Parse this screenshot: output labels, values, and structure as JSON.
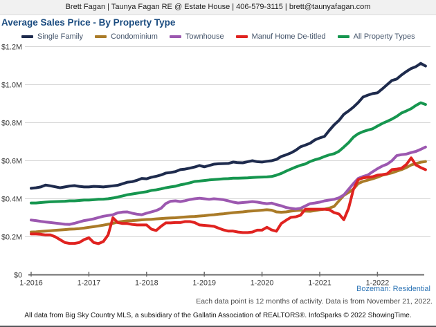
{
  "broker_bar": {
    "text": "Brett Fagan | Taunya Fagan RE @ Estate House | 406-579-3115 | brett@taunyafagan.com"
  },
  "title": "Average Sales Price - By Property Type",
  "footnotes": {
    "market": "Bozeman: Residential",
    "data_note": "Each data point is 12 months of activity. Data is from November 21, 2022.",
    "attribution": "All data from Big Sky Country MLS, a subsidiary of the Gallatin Association of REALTORS®. InfoSparks © 2022 ShowingTime."
  },
  "colors": {
    "title_blue": "#1b4c80",
    "footnote_blue": "#2e75b6",
    "grid": "#d4d4d4",
    "axis": "#6b6b6b",
    "tick_text": "#3a3a3a"
  },
  "chart_data": {
    "type": "line",
    "title": "Average Sales Price - By Property Type",
    "unit": "USD, millions",
    "x_interval": "monthly",
    "x_start": "1-2016",
    "x_end": "11-2022",
    "ylim": [
      0,
      1.2
    ],
    "grid": "horizontal",
    "legend_position": "top",
    "y_ticks": [
      {
        "label": "$0",
        "value": 0.0
      },
      {
        "label": "$0.2M",
        "value": 0.2
      },
      {
        "label": "$0.4M",
        "value": 0.4
      },
      {
        "label": "$0.6M",
        "value": 0.6
      },
      {
        "label": "$0.8M",
        "value": 0.8
      },
      {
        "label": "$1.0M",
        "value": 1.0
      },
      {
        "label": "$1.2M",
        "value": 1.2
      }
    ],
    "x_ticks": [
      {
        "label": "1-2016",
        "month_index": 0
      },
      {
        "label": "1-2017",
        "month_index": 12
      },
      {
        "label": "1-2018",
        "month_index": 24
      },
      {
        "label": "1-2019",
        "month_index": 36
      },
      {
        "label": "1-2020",
        "month_index": 48
      },
      {
        "label": "1-2021",
        "month_index": 60
      },
      {
        "label": "1-2022",
        "month_index": 72
      }
    ],
    "series": [
      {
        "name": "Single Family",
        "color": "#1e2b4d",
        "values": [
          0.455,
          0.458,
          0.462,
          0.472,
          0.468,
          0.463,
          0.458,
          0.462,
          0.467,
          0.469,
          0.465,
          0.462,
          0.462,
          0.465,
          0.464,
          0.462,
          0.465,
          0.468,
          0.471,
          0.479,
          0.487,
          0.49,
          0.497,
          0.507,
          0.505,
          0.513,
          0.518,
          0.525,
          0.535,
          0.538,
          0.543,
          0.553,
          0.556,
          0.561,
          0.567,
          0.575,
          0.568,
          0.575,
          0.582,
          0.584,
          0.585,
          0.586,
          0.593,
          0.59,
          0.589,
          0.595,
          0.6,
          0.595,
          0.593,
          0.597,
          0.6,
          0.607,
          0.622,
          0.631,
          0.641,
          0.655,
          0.673,
          0.682,
          0.692,
          0.71,
          0.72,
          0.728,
          0.76,
          0.789,
          0.812,
          0.844,
          0.862,
          0.882,
          0.906,
          0.935,
          0.945,
          0.953,
          0.957,
          0.978,
          1.0,
          1.022,
          1.03,
          1.051,
          1.069,
          1.085,
          1.095,
          1.112,
          1.098
        ]
      },
      {
        "name": "Condominium",
        "color": "#aa7b28",
        "values": [
          0.225,
          0.226,
          0.228,
          0.23,
          0.232,
          0.234,
          0.236,
          0.238,
          0.24,
          0.241,
          0.243,
          0.246,
          0.25,
          0.253,
          0.257,
          0.261,
          0.266,
          0.271,
          0.277,
          0.281,
          0.284,
          0.285,
          0.287,
          0.289,
          0.291,
          0.292,
          0.294,
          0.296,
          0.298,
          0.299,
          0.3,
          0.302,
          0.304,
          0.306,
          0.307,
          0.309,
          0.311,
          0.314,
          0.316,
          0.319,
          0.321,
          0.324,
          0.327,
          0.329,
          0.331,
          0.334,
          0.336,
          0.338,
          0.34,
          0.342,
          0.34,
          0.331,
          0.329,
          0.331,
          0.335,
          0.338,
          0.34,
          0.335,
          0.334,
          0.338,
          0.342,
          0.345,
          0.351,
          0.36,
          0.389,
          0.418,
          0.433,
          0.451,
          0.48,
          0.491,
          0.498,
          0.505,
          0.513,
          0.524,
          0.53,
          0.536,
          0.545,
          0.553,
          0.564,
          0.578,
          0.585,
          0.592,
          0.596
        ]
      },
      {
        "name": "Townhouse",
        "color": "#9c58b0",
        "values": [
          0.288,
          0.285,
          0.281,
          0.278,
          0.275,
          0.272,
          0.269,
          0.266,
          0.265,
          0.271,
          0.278,
          0.285,
          0.289,
          0.294,
          0.301,
          0.308,
          0.312,
          0.316,
          0.326,
          0.33,
          0.331,
          0.324,
          0.319,
          0.316,
          0.324,
          0.331,
          0.338,
          0.35,
          0.375,
          0.387,
          0.389,
          0.385,
          0.39,
          0.396,
          0.4,
          0.403,
          0.4,
          0.397,
          0.4,
          0.398,
          0.395,
          0.389,
          0.382,
          0.378,
          0.38,
          0.382,
          0.385,
          0.382,
          0.378,
          0.374,
          0.377,
          0.369,
          0.363,
          0.354,
          0.35,
          0.346,
          0.35,
          0.362,
          0.374,
          0.378,
          0.382,
          0.389,
          0.393,
          0.397,
          0.405,
          0.42,
          0.45,
          0.48,
          0.507,
          0.517,
          0.525,
          0.542,
          0.558,
          0.572,
          0.582,
          0.6,
          0.627,
          0.632,
          0.635,
          0.643,
          0.649,
          0.66,
          0.672
        ]
      },
      {
        "name": "Manuf Home De-titled",
        "color": "#e02320",
        "values": [
          0.215,
          0.215,
          0.213,
          0.21,
          0.21,
          0.2,
          0.185,
          0.17,
          0.165,
          0.165,
          0.17,
          0.185,
          0.195,
          0.17,
          0.164,
          0.175,
          0.21,
          0.3,
          0.275,
          0.27,
          0.27,
          0.265,
          0.262,
          0.262,
          0.262,
          0.24,
          0.233,
          0.255,
          0.273,
          0.273,
          0.275,
          0.275,
          0.28,
          0.28,
          0.275,
          0.262,
          0.26,
          0.258,
          0.255,
          0.245,
          0.236,
          0.23,
          0.23,
          0.225,
          0.222,
          0.222,
          0.225,
          0.235,
          0.235,
          0.25,
          0.236,
          0.229,
          0.27,
          0.287,
          0.302,
          0.305,
          0.313,
          0.345,
          0.345,
          0.345,
          0.345,
          0.345,
          0.342,
          0.327,
          0.32,
          0.29,
          0.35,
          0.45,
          0.5,
          0.51,
          0.513,
          0.516,
          0.524,
          0.527,
          0.531,
          0.553,
          0.556,
          0.56,
          0.58,
          0.615,
          0.578,
          0.564,
          0.553
        ]
      },
      {
        "name": "All Property Types",
        "color": "#16964f",
        "values": [
          0.378,
          0.378,
          0.38,
          0.382,
          0.384,
          0.385,
          0.386,
          0.387,
          0.389,
          0.389,
          0.391,
          0.393,
          0.393,
          0.395,
          0.397,
          0.398,
          0.4,
          0.404,
          0.409,
          0.415,
          0.421,
          0.425,
          0.429,
          0.433,
          0.437,
          0.444,
          0.447,
          0.452,
          0.458,
          0.462,
          0.466,
          0.473,
          0.478,
          0.484,
          0.491,
          0.493,
          0.496,
          0.499,
          0.501,
          0.503,
          0.505,
          0.506,
          0.508,
          0.508,
          0.509,
          0.51,
          0.512,
          0.513,
          0.514,
          0.515,
          0.517,
          0.524,
          0.533,
          0.545,
          0.556,
          0.567,
          0.576,
          0.583,
          0.596,
          0.605,
          0.612,
          0.622,
          0.631,
          0.637,
          0.65,
          0.672,
          0.695,
          0.724,
          0.742,
          0.753,
          0.761,
          0.768,
          0.782,
          0.796,
          0.807,
          0.819,
          0.833,
          0.851,
          0.862,
          0.874,
          0.891,
          0.905,
          0.896
        ]
      }
    ]
  }
}
